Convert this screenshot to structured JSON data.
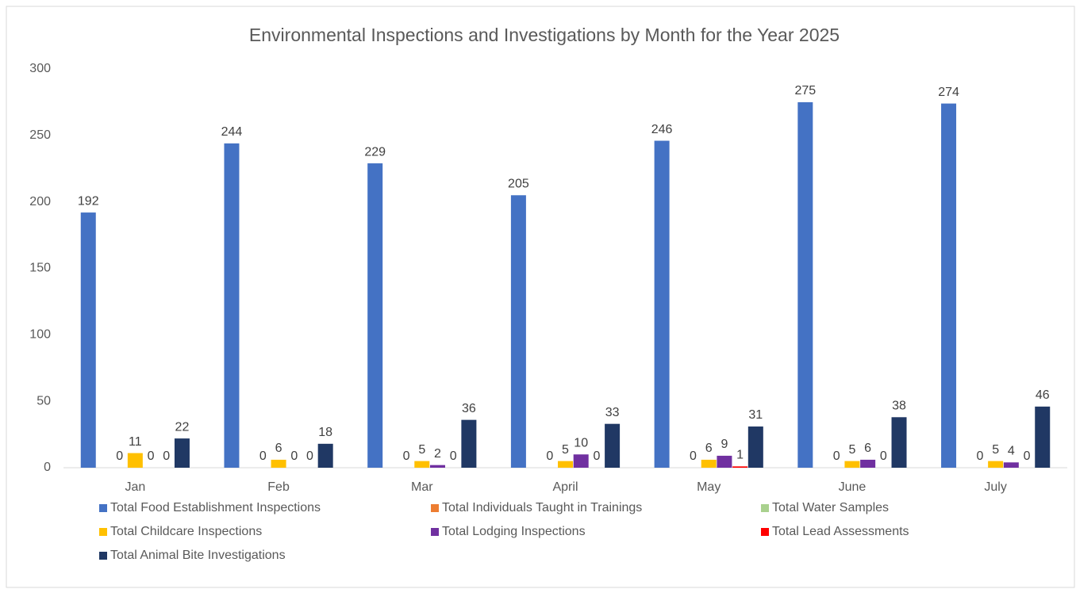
{
  "chart_data": {
    "type": "bar",
    "title": "Environmental Inspections and Investigations by Month for the Year 2025",
    "categories": [
      "Jan",
      "Feb",
      "Mar",
      "April",
      "May",
      "June",
      "July"
    ],
    "series": [
      {
        "name": "Total Food Establishment Inspections",
        "color": "#4472c4",
        "data_labels": true,
        "values": [
          192,
          244,
          229,
          205,
          246,
          275,
          274
        ]
      },
      {
        "name": "Total Individuals Taught in Trainings",
        "color": "#ed7d31",
        "data_labels": false,
        "values": [
          0,
          0,
          0,
          0,
          0,
          0,
          0
        ]
      },
      {
        "name": "Total Water Samples",
        "color": "#a9d18e",
        "data_labels": true,
        "values": [
          0,
          0,
          0,
          0,
          0,
          0,
          0
        ]
      },
      {
        "name": "Total Childcare Inspections",
        "color": "#ffc000",
        "data_labels": true,
        "values": [
          11,
          6,
          5,
          5,
          6,
          5,
          5
        ]
      },
      {
        "name": "Total Lodging Inspections",
        "color": "#7030a0",
        "data_labels": true,
        "values": [
          0,
          0,
          2,
          10,
          9,
          6,
          4
        ]
      },
      {
        "name": "Total Lead Assessments",
        "color": "#ff0000",
        "data_labels": true,
        "values": [
          0,
          0,
          0,
          0,
          1,
          0,
          0
        ]
      },
      {
        "name": "Total Animal Bite Investigations",
        "color": "#203864",
        "data_labels": true,
        "values": [
          22,
          18,
          36,
          33,
          31,
          38,
          46
        ]
      }
    ],
    "ylim": [
      0,
      300
    ],
    "yticks": [
      0,
      50,
      100,
      150,
      200,
      250,
      300
    ],
    "grid": false,
    "legend": "bottom"
  }
}
